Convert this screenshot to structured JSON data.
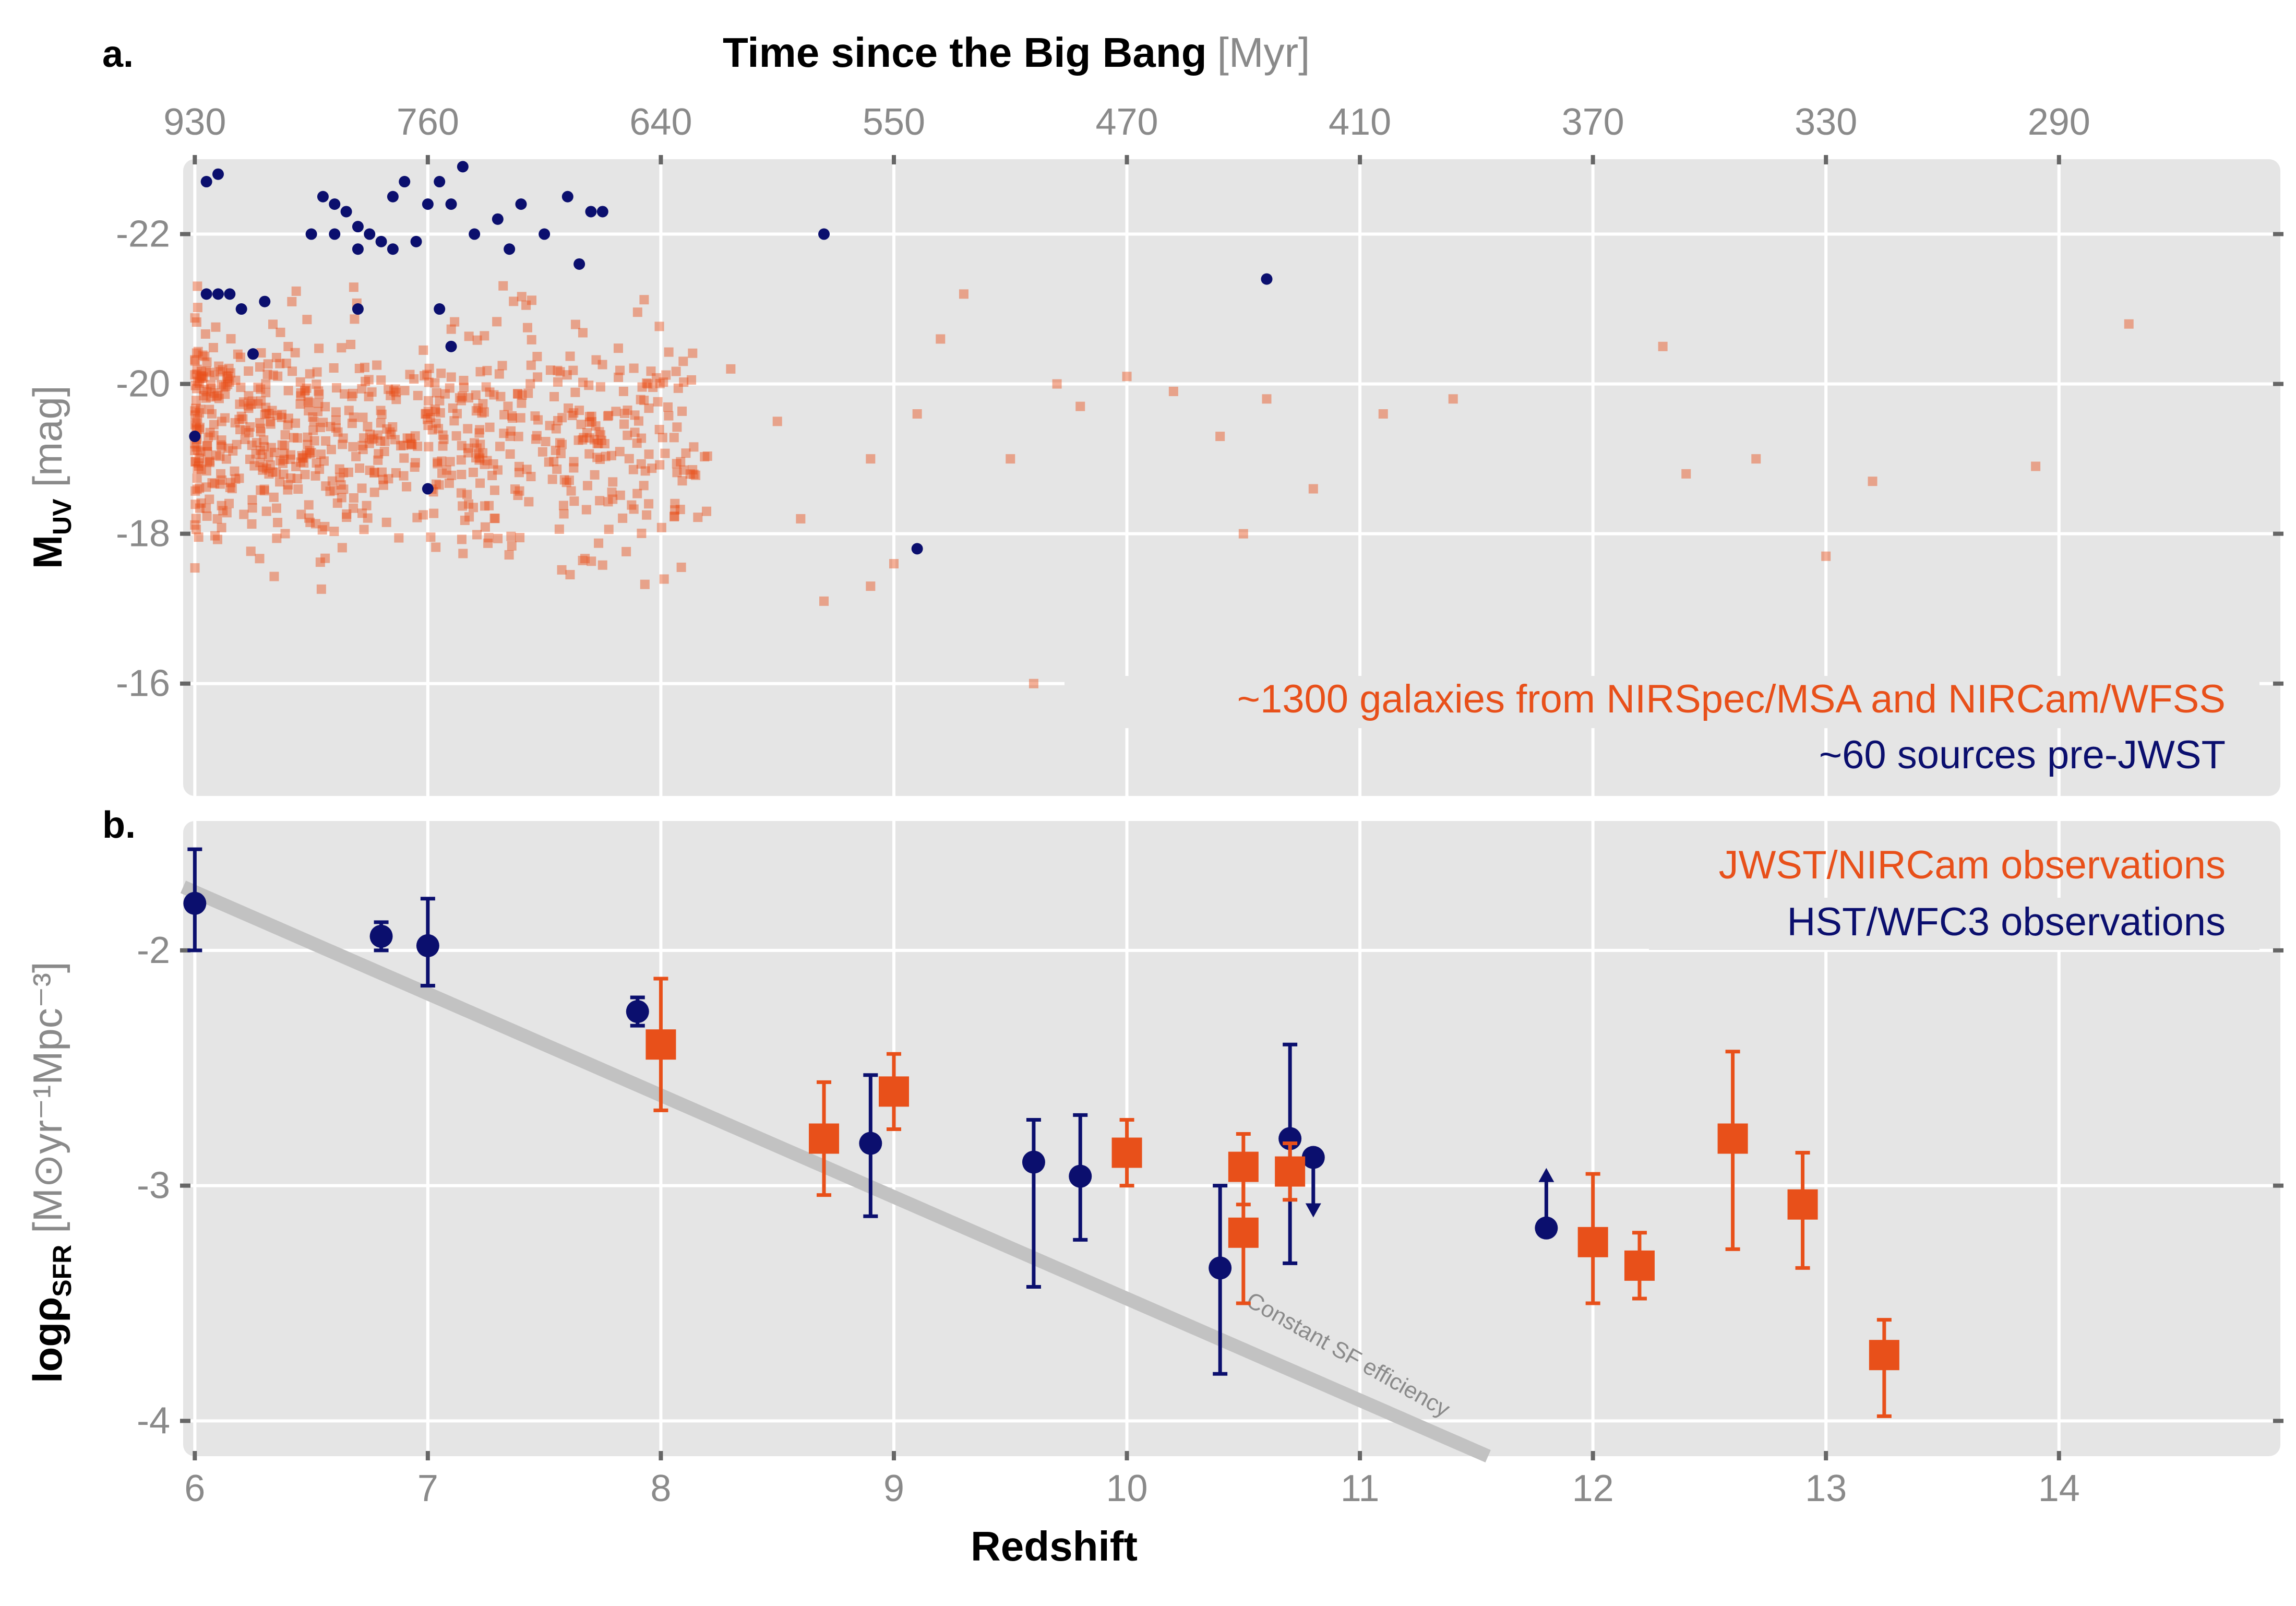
{
  "panel_a": {
    "label": "a.",
    "top_axis_title": "Time since the Big Bang",
    "top_axis_unit": "[Myr]",
    "top_ticks": [
      "930",
      "760",
      "640",
      "550",
      "470",
      "410",
      "370",
      "330",
      "290"
    ],
    "ylabel_main": "M",
    "ylabel_sub": "UV",
    "ylabel_unit": "[mag]",
    "legend_orange": "~1300 galaxies from NIRSpec/MSA and NIRCam/WFSS",
    "legend_blue": "~60 sources pre-JWST"
  },
  "panel_b": {
    "label": "b.",
    "ylabel_main": "logρ",
    "ylabel_sub": "SFR",
    "ylabel_unit": "[M⊙yr⁻¹Mpc⁻³]",
    "legend_orange": "JWST/NIRCam observations",
    "legend_blue": "HST/WFC3 observations",
    "line_label": "Constant SF efficiency"
  },
  "xlabel": "Redshift",
  "colors": {
    "orange": "#e8501a",
    "navy": "#0b0f6e",
    "panel_bg": "#e5e5e5",
    "grid": "#ffffff",
    "line": "#bdbdbd"
  },
  "chart_data": [
    {
      "type": "scatter",
      "panel": "a",
      "xlabel": "Redshift",
      "ylabel": "M_UV [mag]",
      "xlim": [
        5.95,
        14.95
      ],
      "ylim": [
        -14.5,
        -23.0
      ],
      "y_ticks": [
        -22,
        -20,
        -18,
        -16
      ],
      "x_ticks": [
        6,
        7,
        8,
        9,
        10,
        11,
        12,
        13,
        14
      ],
      "top_axis_ticks_myr": [
        930,
        760,
        640,
        550,
        470,
        410,
        370,
        330,
        290
      ],
      "series": [
        {
          "name": "~1300 galaxies from NIRSpec/MSA and NIRCam/WFSS",
          "marker": "square",
          "n_points": 1300,
          "x": [
            8.3,
            8.5,
            8.6,
            8.9,
            9.0,
            9.1,
            9.2,
            9.3,
            9.5,
            9.7,
            9.8,
            10.0,
            10.2,
            10.4,
            10.6,
            10.8,
            11.1,
            11.4,
            12.3,
            12.4,
            12.7,
            13.0,
            13.2,
            13.9,
            14.3,
            8.7,
            8.9,
            9.6,
            10.5
          ],
          "y": [
            -20.2,
            -19.5,
            -18.2,
            -19.0,
            -17.6,
            -19.6,
            -20.6,
            -21.2,
            -19.0,
            -20.0,
            -19.7,
            -20.1,
            -19.9,
            -19.3,
            -19.8,
            -18.6,
            -19.6,
            -19.8,
            -20.5,
            -18.8,
            -19.0,
            -17.7,
            -18.7,
            -18.9,
            -20.8,
            -17.1,
            -17.3,
            -16.0,
            -18.0
          ]
        },
        {
          "name": "~60 sources pre-JWST",
          "marker": "circle",
          "n_points": 60,
          "x": [
            6.05,
            6.1,
            6.15,
            6.05,
            6.1,
            6.2,
            6.25,
            6.0,
            6.3,
            6.5,
            6.55,
            6.6,
            6.65,
            6.7,
            6.75,
            6.8,
            6.85,
            6.9,
            6.95,
            7.0,
            7.05,
            7.1,
            7.15,
            7.2,
            7.3,
            7.35,
            7.4,
            7.5,
            7.6,
            7.7,
            7.75,
            7.65,
            6.6,
            6.7,
            6.85,
            7.05,
            7.1,
            8.7,
            9.1,
            10.6,
            7.0,
            6.7
          ],
          "y": [
            -22.7,
            -22.8,
            -21.2,
            -21.2,
            -21.2,
            -21.0,
            -20.4,
            -19.3,
            -21.1,
            -22.0,
            -22.5,
            -22.0,
            -22.3,
            -22.1,
            -22.0,
            -21.9,
            -22.5,
            -22.7,
            -21.9,
            -22.4,
            -22.7,
            -22.4,
            -22.9,
            -22.0,
            -22.2,
            -21.8,
            -22.4,
            -22.0,
            -22.5,
            -22.3,
            -22.3,
            -21.6,
            -22.4,
            -21.8,
            -21.8,
            -21.0,
            -20.5,
            -22.0,
            -17.8,
            -21.4,
            -18.6,
            -21.0
          ]
        }
      ]
    },
    {
      "type": "scatter",
      "panel": "b",
      "xlabel": "Redshift",
      "ylabel": "logρ_SFR [M⊙ yr⁻¹ Mpc⁻³]",
      "xlim": [
        5.95,
        14.95
      ],
      "ylim": [
        -4.15,
        -1.45
      ],
      "y_ticks": [
        -2,
        -3,
        -4
      ],
      "x_ticks": [
        6,
        7,
        8,
        9,
        10,
        11,
        12,
        13,
        14
      ],
      "series": [
        {
          "name": "JWST/NIRCam observations",
          "marker": "square",
          "points": [
            {
              "x": 8.0,
              "y": -2.4,
              "lo": -2.68,
              "hi": -2.12
            },
            {
              "x": 8.7,
              "y": -2.8,
              "lo": -3.04,
              "hi": -2.56
            },
            {
              "x": 9.0,
              "y": -2.6,
              "lo": -2.76,
              "hi": -2.44
            },
            {
              "x": 10.0,
              "y": -2.86,
              "lo": -3.0,
              "hi": -2.72
            },
            {
              "x": 10.5,
              "y": -2.92,
              "lo": -3.08,
              "hi": -2.78
            },
            {
              "x": 10.5,
              "y": -3.2,
              "lo": -3.5,
              "hi": -2.9
            },
            {
              "x": 10.7,
              "y": -2.94,
              "lo": -3.06,
              "hi": -2.82
            },
            {
              "x": 12.0,
              "y": -3.24,
              "lo": -3.5,
              "hi": -2.95
            },
            {
              "x": 12.2,
              "y": -3.34,
              "lo": -3.48,
              "hi": -3.2
            },
            {
              "x": 12.6,
              "y": -2.8,
              "lo": -3.27,
              "hi": -2.43
            },
            {
              "x": 12.9,
              "y": -3.08,
              "lo": -3.35,
              "hi": -2.86
            },
            {
              "x": 13.25,
              "y": -3.72,
              "lo": -3.98,
              "hi": -3.57
            }
          ]
        },
        {
          "name": "HST/WFC3 observations",
          "marker": "circle",
          "points": [
            {
              "x": 6.0,
              "y": -1.8,
              "lo": -2.0,
              "hi": -1.57
            },
            {
              "x": 6.8,
              "y": -1.94,
              "lo": -2.0,
              "hi": -1.88
            },
            {
              "x": 7.0,
              "y": -1.98,
              "lo": -2.15,
              "hi": -1.78
            },
            {
              "x": 7.9,
              "y": -2.26,
              "lo": -2.32,
              "hi": -2.2
            },
            {
              "x": 8.9,
              "y": -2.82,
              "lo": -3.13,
              "hi": -2.53
            },
            {
              "x": 9.6,
              "y": -2.9,
              "lo": -3.43,
              "hi": -2.72
            },
            {
              "x": 9.8,
              "y": -2.96,
              "lo": -3.23,
              "hi": -2.7
            },
            {
              "x": 10.4,
              "y": -3.35,
              "lo": -3.8,
              "hi": -3.0
            },
            {
              "x": 10.7,
              "y": -2.8,
              "lo": -3.33,
              "hi": -2.4
            },
            {
              "x": 10.8,
              "y": -2.88,
              "limit": "upper"
            },
            {
              "x": 11.8,
              "y": -3.18,
              "limit": "lower"
            }
          ]
        },
        {
          "name": "Constant SF efficiency",
          "type": "line",
          "x": [
            5.95,
            11.55
          ],
          "y": [
            -1.73,
            -4.15
          ]
        }
      ]
    }
  ]
}
